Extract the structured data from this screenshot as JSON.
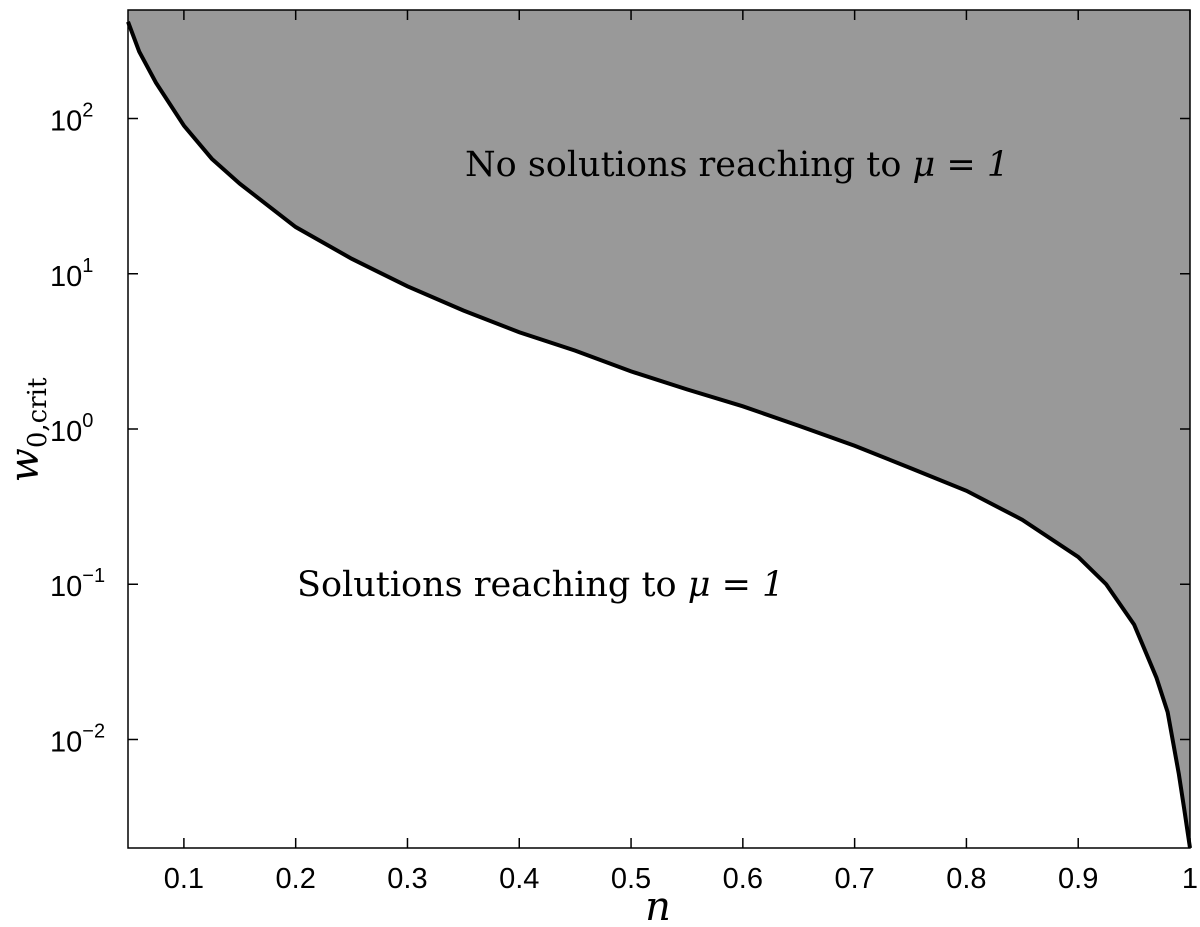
{
  "chart_data": {
    "type": "area",
    "title": "",
    "xlabel": "n",
    "ylabel": {
      "main": "w",
      "sub": "0,crit"
    },
    "xlim": [
      0.05,
      1.0
    ],
    "ylim": [
      0.002,
      500
    ],
    "yscale": "log",
    "grid": false,
    "xticks": [
      0.1,
      0.2,
      0.3,
      0.4,
      0.5,
      0.6,
      0.7,
      0.8,
      0.9,
      1.0
    ],
    "xtick_labels": [
      "0.1",
      "0.2",
      "0.3",
      "0.4",
      "0.5",
      "0.6",
      "0.7",
      "0.8",
      "0.9",
      "1"
    ],
    "yticks": [
      {
        "value": 0.01,
        "base": "10",
        "exp": "−2"
      },
      {
        "value": 0.1,
        "base": "10",
        "exp": "−1"
      },
      {
        "value": 1,
        "base": "10",
        "exp": "0"
      },
      {
        "value": 10,
        "base": "10",
        "exp": "1"
      },
      {
        "value": 100,
        "base": "10",
        "exp": "2"
      }
    ],
    "series": [
      {
        "x": [
          0.05,
          0.06,
          0.075,
          0.1,
          0.125,
          0.15,
          0.2,
          0.25,
          0.3,
          0.35,
          0.4,
          0.45,
          0.5,
          0.55,
          0.6,
          0.65,
          0.7,
          0.75,
          0.8,
          0.85,
          0.9,
          0.925,
          0.95,
          0.97,
          0.98,
          0.99,
          0.995,
          0.998,
          1.0
        ],
        "y": [
          420,
          270,
          170,
          90,
          55,
          38,
          20,
          12.5,
          8.3,
          5.8,
          4.2,
          3.2,
          2.35,
          1.8,
          1.4,
          1.05,
          0.78,
          0.56,
          0.4,
          0.26,
          0.15,
          0.1,
          0.055,
          0.025,
          0.015,
          0.006,
          0.0035,
          0.0025,
          0.002
        ]
      }
    ],
    "fill_above_curve": "#999999",
    "curve_color": "#000000",
    "annotations": [
      {
        "id": "upper",
        "text": "No solutions reaching to ",
        "math": "μ = 1"
      },
      {
        "id": "lower",
        "text": "Solutions reaching to ",
        "math": "μ = 1"
      }
    ]
  }
}
